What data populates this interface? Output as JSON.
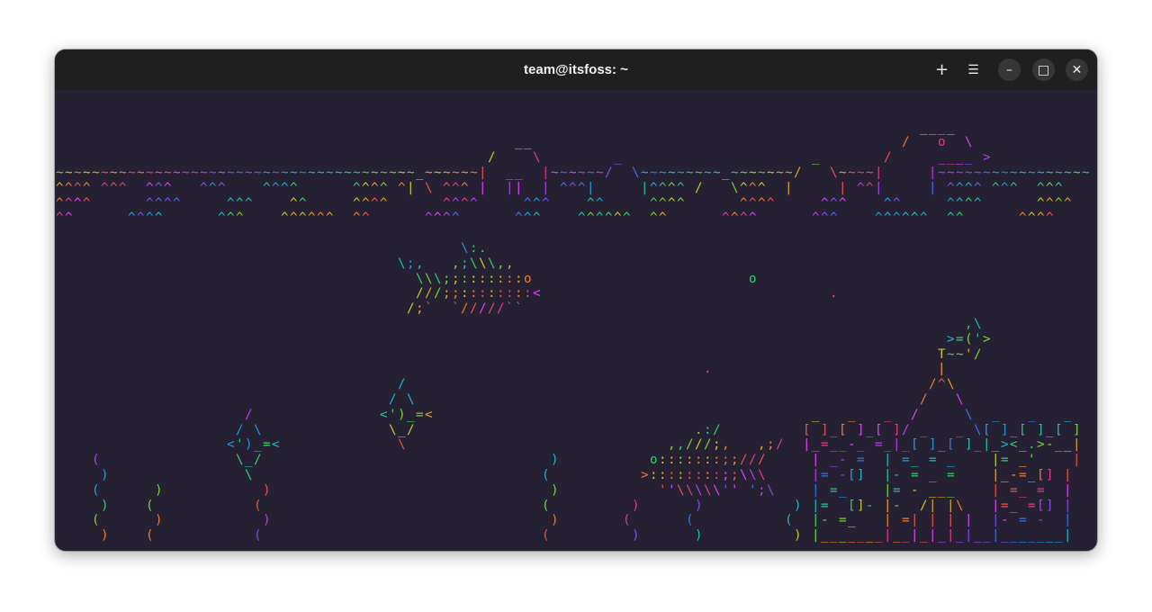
{
  "window": {
    "title": "team@itsfoss: ~"
  },
  "titlebar": {
    "new_tab_icon": "+",
    "menu_icon": "☰",
    "minimize_icon": "–",
    "maximize_icon": "□",
    "close_icon": "✕"
  },
  "colors": {
    "terminal_background": "#262033",
    "titlebar_background": "#1f1f1f",
    "palette": [
      "#e040fb",
      "#b040e8",
      "#7b4cf0",
      "#3f6fe8",
      "#1e9be0",
      "#18b8c8",
      "#1cc99a",
      "#2ed46a",
      "#7ad23a",
      "#c2cc2c",
      "#e3a52a",
      "#ef7a33",
      "#ee5050",
      "#e23a8a"
    ]
  },
  "aquarium": {
    "surface": [
      "                                                                                                ____",
      "                                                   __                                         /   o  \\",
      "                                                /    \\        _                     _       /     ____ >",
      "~~~~~~~~~~~~~~~~~~~~~~~~~~~~~~~~~~~~~~~~_~~~~~~|  __  |~~~~~~/  \\~~~~~~~~~_~~~~~~~/   \\~~~~|     |~~~~~~~~~~~~~~~~~",
      "^^^^ ^^^  ^^^   ^^^    ^^^^      ^^^^ ^| \\ ^^^ |  ||  | ^^^|     |^^^^ /   \\^^^  |     | ^^|     | ^^^^ ^^^  ^^^",
      "^^^^      ^^^^     ^^^    ^^     ^^^^      ^^^^     ^^^    ^^     ^^^^      ^^^^     ^^^    ^^     ^^^^      ^^^^",
      "^^      ^^^^      ^^^    ^^^^^^  ^^      ^^^^      ^^^    ^^^^^^  ^^      ^^^^      ^^^    ^^^^^^  ^^      ^^^^"
    ],
    "shark": [
      "       \\:.",
      "\\;,   ,;\\\\\\,,",
      "  \\\\\\;;:::::::o",
      "  ///;;::::::::<",
      " /;`  `/////``"
    ],
    "fish_blue": [
      "  /",
      " / \\",
      "<')_=<",
      " \\_/",
      "  \\"
    ],
    "fish_green": [
      "  /",
      " / \\",
      "<')_=<",
      " \\_/",
      "  \\"
    ],
    "fish_big": [
      "      .:/",
      "   ,,///;,   ,;/",
      " o:::::::;;///",
      ">::::::::;;\\\\\\",
      "  ''\\\\\\\\\\'' ';\\"
    ],
    "castle_fish": [
      ",\\",
      ">=('>",
      "'/"
    ],
    "castle": [
      "               T~~",
      "               |",
      "              /^\\",
      "             /   \\",
      " _   _   _  /     \\  _   _   _",
      "[ ]_[ ]_[ ]/ _   _ \\[ ]_[ ]_[ ]",
      "|_=__-_ =_|_[ ]_[ ]_|_><_.>-__|",
      " | _- =  | =_ = _    |= _'    |",
      " |= -[]  |- = _ =    |_-=_[] |",
      " | =_    |= - ___    | =_ =  |",
      " |=  []- |-  /| |\\   |=_ =[] |",
      " |- =_   | =| | | |  |- = -  |",
      " |_______|__|_|_|_|__|_______|"
    ],
    "bubbles": [
      "o",
      ".",
      "."
    ],
    "seaweed": {
      "a": [
        "(",
        " )",
        "(",
        " )",
        "(",
        " )"
      ],
      "b": [
        " )",
        "(",
        " )",
        "("
      ],
      "c": [
        " )",
        "(",
        " )",
        "("
      ],
      "d": [
        " )",
        "(",
        " )"
      ],
      "e": [
        " )",
        "(",
        " )"
      ],
      "f": [
        " )",
        "(",
        " )"
      ],
      "g": [
        " )",
        "(",
        " )",
        "(",
        " )",
        "("
      ]
    }
  }
}
